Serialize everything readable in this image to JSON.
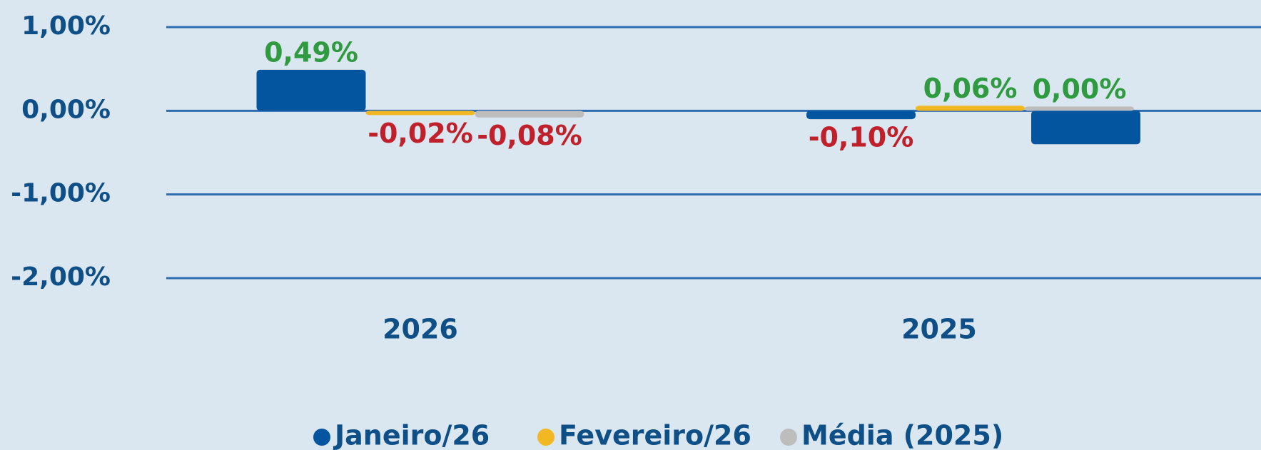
{
  "chart_data": {
    "type": "bar",
    "categories": [
      "2026",
      "2025"
    ],
    "series": [
      {
        "name": "Janeiro/26",
        "color": "#0455a0",
        "values": [
          0.49,
          -0.1
        ],
        "value_labels": [
          "0,49%",
          "-0,10%"
        ]
      },
      {
        "name": "Fevereiro/26",
        "color": "#f2b824",
        "values": [
          -0.02,
          0.06
        ],
        "value_labels": [
          "-0,02%",
          "0,06%"
        ]
      },
      {
        "name": "Média (2025)",
        "color": "#bdbdbd",
        "values": [
          -0.08,
          0.0
        ],
        "value_labels": [
          "-0,08%",
          "0,00%"
        ]
      },
      {
        "name": null,
        "color": "#0455a0",
        "values": [
          null,
          -0.4
        ]
      }
    ],
    "ylim": [
      -2,
      1
    ],
    "yticks": [
      {
        "value": 1,
        "label": "1,00%"
      },
      {
        "value": 0,
        "label": "0,00%"
      },
      {
        "value": -1,
        "label": "-1,00%"
      },
      {
        "value": -2,
        "label": "-2,00%"
      }
    ],
    "grid": true,
    "grid_color": "#2f6cb0",
    "positive_label_color": "#2f9a3f",
    "negative_label_color": "#c0202a",
    "legend": "bottom"
  }
}
